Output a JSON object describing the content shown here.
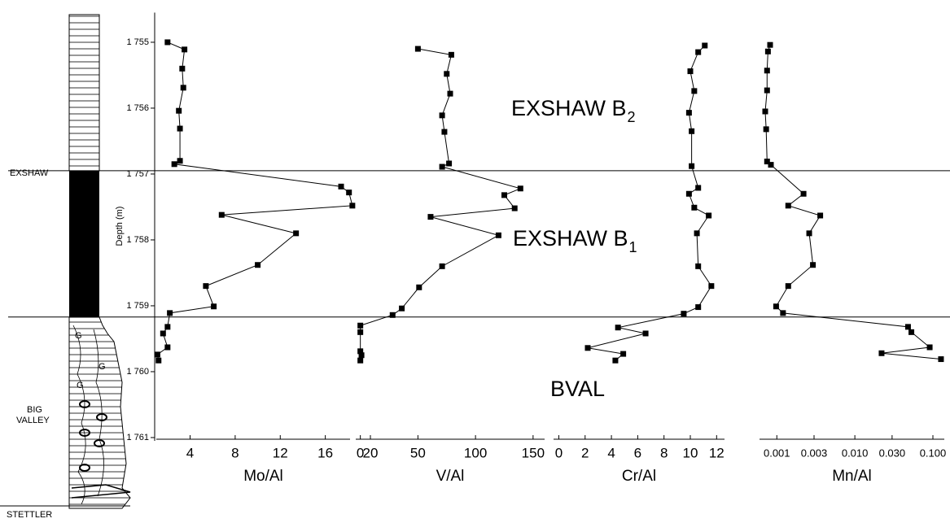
{
  "depth_axis": {
    "label": "Depth (m)",
    "ylim": [
      1754.55,
      1761.05
    ],
    "yticks": [
      {
        "value": 1755,
        "label": "1 755"
      },
      {
        "value": 1756,
        "label": "1 756"
      },
      {
        "value": 1757,
        "label": "1 757"
      },
      {
        "value": 1758,
        "label": "1 758"
      },
      {
        "value": 1759,
        "label": "1 759"
      },
      {
        "value": 1760,
        "label": "1 760"
      },
      {
        "value": 1761,
        "label": "1 761"
      }
    ],
    "boundaries": [
      1756.95,
      1759.17
    ]
  },
  "lithology": {
    "units": [
      "EXSHAW",
      [
        "BIG",
        "VALLEY"
      ],
      "STETTLER"
    ],
    "symbols": [
      "G",
      "G",
      "G"
    ]
  },
  "annotations": [
    {
      "text": "EXSHAW B",
      "subscript": "2"
    },
    {
      "text": "EXSHAW B",
      "subscript": "1"
    },
    {
      "text": "BVAL"
    }
  ],
  "chart_data": [
    {
      "type": "line",
      "xlabel": "Mo/Al",
      "color": "#000000",
      "xlim": [
        1,
        20
      ],
      "xticks": [
        4,
        8,
        12,
        16,
        20
      ],
      "depth": [
        1755.0,
        1755.11,
        1755.4,
        1755.69,
        1756.04,
        1756.31,
        1756.8,
        1756.85,
        1757.19,
        1757.28,
        1757.48,
        1757.62,
        1757.9,
        1758.38,
        1758.7,
        1759.01,
        1759.11,
        1759.32,
        1759.42,
        1759.63,
        1759.74,
        1759.83
      ],
      "values": [
        2.0,
        3.5,
        3.3,
        3.4,
        3.0,
        3.1,
        3.1,
        2.6,
        17.4,
        18.1,
        18.4,
        6.8,
        13.4,
        10.0,
        5.4,
        6.1,
        2.2,
        2.0,
        1.6,
        2.0,
        1.1,
        1.2
      ]
    },
    {
      "type": "line",
      "xlabel": "V/Al",
      "color": "#000000",
      "xlim": [
        -4,
        160
      ],
      "xticks": [
        0,
        50,
        100,
        150
      ],
      "depth": [
        1755.1,
        1755.19,
        1755.48,
        1755.78,
        1756.11,
        1756.36,
        1756.84,
        1756.89,
        1757.22,
        1757.32,
        1757.52,
        1757.65,
        1757.93,
        1758.4,
        1758.72,
        1759.04,
        1759.14,
        1759.3,
        1759.4,
        1759.69,
        1759.75,
        1759.83
      ],
      "values": [
        50,
        79,
        75,
        78,
        71,
        73,
        77,
        71,
        139,
        125,
        134,
        61,
        120,
        71,
        51,
        36,
        28,
        0,
        0,
        0,
        1,
        0
      ]
    },
    {
      "type": "line",
      "xlabel": "Cr/Al",
      "color": "#000000",
      "xlim": [
        -0.4,
        12.6
      ],
      "xticks": [
        0,
        2,
        4,
        6,
        8,
        10,
        12
      ],
      "depth": [
        1755.05,
        1755.15,
        1755.44,
        1755.74,
        1756.07,
        1756.35,
        1756.88,
        1757.21,
        1757.3,
        1757.51,
        1757.63,
        1757.9,
        1758.4,
        1758.7,
        1759.02,
        1759.12,
        1759.33,
        1759.42,
        1759.64,
        1759.73,
        1759.83
      ],
      "values": [
        11.1,
        10.6,
        10.0,
        10.3,
        9.9,
        10.1,
        10.1,
        10.6,
        9.9,
        10.3,
        11.4,
        10.5,
        10.6,
        11.6,
        10.6,
        9.5,
        4.5,
        6.6,
        2.2,
        4.9,
        4.3
      ]
    },
    {
      "type": "line",
      "xlabel": "Mn/Al",
      "color": "#000000",
      "log": true,
      "xlim": [
        0.0006,
        0.14
      ],
      "xticks": [
        {
          "value": 0.001,
          "label": "0.001"
        },
        0.003,
        {
          "value": 0.01,
          "label": "0.010"
        },
        {
          "value": 0.03,
          "label": "0.030"
        },
        {
          "value": 0.1,
          "label": "0.100"
        }
      ],
      "depth": [
        1755.04,
        1755.14,
        1755.43,
        1755.73,
        1756.05,
        1756.32,
        1756.81,
        1756.86,
        1757.3,
        1757.48,
        1757.63,
        1757.9,
        1758.38,
        1758.7,
        1759.01,
        1759.11,
        1759.32,
        1759.4,
        1759.63,
        1759.72,
        1759.81
      ],
      "values": [
        0.00082,
        0.00077,
        0.00075,
        0.00075,
        0.00071,
        0.00073,
        0.00075,
        0.00084,
        0.0022,
        0.0014,
        0.0036,
        0.0026,
        0.0029,
        0.0014,
        0.00098,
        0.0012,
        0.048,
        0.053,
        0.091,
        0.022,
        0.127
      ]
    }
  ]
}
